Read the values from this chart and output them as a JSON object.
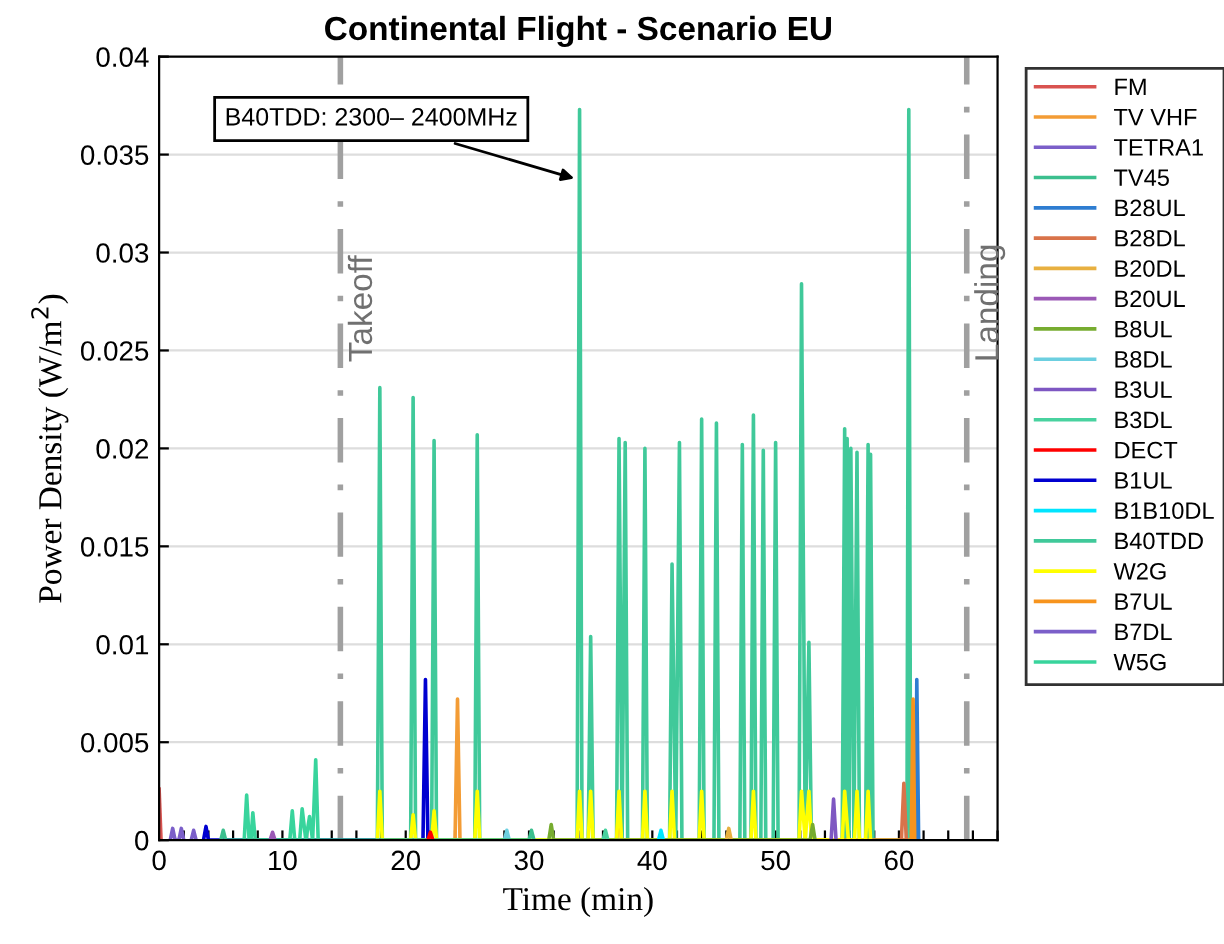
{
  "chart_data": {
    "type": "line",
    "title": "Continental Flight - Scenario EU",
    "xlabel": "Time (min)",
    "ylabel": "Power Density (W/m$^{2}$)",
    "xlim": [
      0,
      68
    ],
    "ylim": [
      0,
      0.04
    ],
    "xticks": [
      0,
      {
        "value": 2,
        "label": null
      },
      {
        "value": 4,
        "label": null
      },
      {
        "value": 6,
        "label": null
      },
      {
        "value": 8,
        "label": null
      },
      10,
      {
        "value": 12,
        "label": null
      },
      {
        "value": 14,
        "label": null
      },
      {
        "value": 16,
        "label": null
      },
      {
        "value": 18,
        "label": null
      },
      20,
      {
        "value": 22,
        "label": null
      },
      {
        "value": 24,
        "label": null
      },
      {
        "value": 26,
        "label": null
      },
      {
        "value": 28,
        "label": null
      },
      30,
      {
        "value": 32,
        "label": null
      },
      {
        "value": 34,
        "label": null
      },
      {
        "value": 36,
        "label": null
      },
      {
        "value": 38,
        "label": null
      },
      40,
      {
        "value": 42,
        "label": null
      },
      {
        "value": 44,
        "label": null
      },
      {
        "value": 46,
        "label": null
      },
      {
        "value": 48,
        "label": null
      },
      50,
      {
        "value": 52,
        "label": null
      },
      {
        "value": 54,
        "label": null
      },
      {
        "value": 56,
        "label": null
      },
      {
        "value": 58,
        "label": null
      },
      60,
      {
        "value": 62,
        "label": null
      },
      {
        "value": 64,
        "label": null
      },
      {
        "value": 66,
        "label": null
      },
      {
        "value": 68,
        "label": null
      }
    ],
    "yticks": [
      0,
      0.005,
      0.01,
      0.015,
      0.02,
      0.025,
      0.03,
      0.035,
      0.04
    ],
    "grid": "y",
    "legend": "right",
    "line_style": "solid",
    "ref_lines": [
      {
        "axis": "x",
        "value": 14.7,
        "label": "Takeoff",
        "color": "#a0a0a0",
        "line_style": "dashdot"
      },
      {
        "axis": "x",
        "value": 65.5,
        "label": "Landing",
        "color": "#a0a0a0",
        "line_style": "dashdot"
      }
    ],
    "annotations": [
      {
        "text": "B40TDD: 2300– 2400MHz",
        "x": 34.1,
        "y": 0.0337
      }
    ],
    "series": [
      {
        "name": "FM",
        "color": "#d95350",
        "x": [
          0,
          0.15
        ],
        "values": [
          0.0026,
          0.0001
        ]
      },
      {
        "name": "TV VHF",
        "color": "#f39c35",
        "x": [
          24.0,
          24.2,
          24.4
        ],
        "values": [
          0,
          0.0072,
          0
        ]
      },
      {
        "name": "TETRA1",
        "color": "#7b5fc9",
        "x": [
          0.9,
          1.1,
          1.3,
          1.6,
          1.8,
          2.0
        ],
        "values": [
          0,
          0.0006,
          0,
          0,
          0.0006,
          0
        ]
      },
      {
        "name": "TV45",
        "color": "#3cbf8e",
        "x": [
          5.0,
          5.2,
          5.4,
          30.0,
          30.2,
          30.4
        ],
        "values": [
          0,
          0.0005,
          0,
          0,
          0.0005,
          0
        ]
      },
      {
        "name": "B28UL",
        "color": "#2e7dd1",
        "x": [
          61.35,
          61.45,
          61.6
        ],
        "values": [
          0,
          0.0082,
          0
        ]
      },
      {
        "name": "B28DL",
        "color": "#d9734a",
        "x": [
          60.2,
          60.4,
          60.6
        ],
        "values": [
          0,
          0.0029,
          0
        ]
      },
      {
        "name": "B20DL",
        "color": "#e8b040",
        "x": [
          46.0,
          46.2,
          46.4
        ],
        "values": [
          0,
          0.0006,
          0
        ]
      },
      {
        "name": "B20UL",
        "color": "#9b59b6",
        "x": [
          9.0,
          9.2,
          9.4
        ],
        "values": [
          0,
          0.0004,
          0
        ]
      },
      {
        "name": "B8UL",
        "color": "#77ac30",
        "x": [
          31.6,
          31.8,
          32.0,
          52.8,
          53.0,
          53.2
        ],
        "values": [
          0,
          0.0008,
          0,
          0,
          0.0008,
          0
        ]
      },
      {
        "name": "B8DL",
        "color": "#6ccfe0",
        "x": [
          28.0,
          28.2,
          28.4
        ],
        "values": [
          0,
          0.0005,
          0
        ]
      },
      {
        "name": "B3UL",
        "color": "#7e57c2",
        "x": [
          54.5,
          54.7,
          54.9
        ],
        "values": [
          0,
          0.0021,
          0
        ]
      },
      {
        "name": "B3DL",
        "color": "#48d29f",
        "x": [
          36.0,
          36.2,
          36.4
        ],
        "values": [
          0,
          0.0005,
          0
        ]
      },
      {
        "name": "DECT",
        "color": "#ff0000",
        "x": [
          21.8,
          22.0,
          22.2
        ],
        "values": [
          0,
          0.0004,
          0
        ]
      },
      {
        "name": "B1UL",
        "color": "#0000d0",
        "x": [
          3.6,
          3.8,
          4.0,
          21.4,
          21.6,
          21.8
        ],
        "values": [
          0,
          0.0007,
          0,
          0,
          0.0082,
          0
        ]
      },
      {
        "name": "B1B10DL",
        "color": "#00e5ff",
        "x": [
          40.5,
          40.7,
          40.9
        ],
        "values": [
          0,
          0.0005,
          0
        ]
      },
      {
        "name": "B40TDD",
        "color": "#40c99a",
        "x": [
          17.7,
          17.9,
          18.1,
          20.4,
          20.6,
          20.8,
          22.1,
          22.3,
          22.5,
          25.6,
          25.8,
          26.0,
          33.9,
          34.1,
          34.3,
          34.8,
          35.0,
          35.2,
          37.1,
          37.3,
          37.55,
          37.8,
          38.0,
          39.2,
          39.4,
          39.6,
          41.4,
          41.6,
          41.9,
          42.2,
          42.4,
          43.8,
          44.0,
          44.2,
          45.0,
          45.2,
          45.4,
          47.1,
          47.3,
          47.5,
          48.0,
          48.2,
          48.4,
          48.8,
          49.0,
          49.2,
          49.8,
          50.0,
          50.2,
          51.9,
          52.1,
          52.4,
          52.7,
          52.9,
          55.4,
          55.6,
          55.7,
          55.8,
          55.95,
          56.1,
          56.35,
          56.6,
          56.8,
          57.3,
          57.5,
          57.6,
          57.7,
          57.9,
          60.65,
          60.8,
          60.95
        ],
        "values": [
          0,
          0.0231,
          0,
          0,
          0.0226,
          0,
          0,
          0.0204,
          0,
          0,
          0.0207,
          0,
          0,
          0.0373,
          0,
          0,
          0.0104,
          0,
          0,
          0.0205,
          0,
          0.0203,
          0,
          0,
          0.02,
          0,
          0,
          0.0141,
          0,
          0.0203,
          0,
          0,
          0.0215,
          0,
          0,
          0.0213,
          0,
          0,
          0.0202,
          0,
          0,
          0.0217,
          0,
          0,
          0.0199,
          0,
          0,
          0.0203,
          0,
          0,
          0.0284,
          0,
          0.0101,
          0,
          0,
          0.021,
          0,
          0.0205,
          0,
          0.02,
          0,
          0.0198,
          0,
          0,
          0.0202,
          0,
          0.0197,
          0,
          0,
          0.0373,
          0
        ]
      },
      {
        "name": "W2G",
        "color": "#ffff00",
        "x": [
          17.7,
          17.9,
          18.1,
          20.4,
          20.6,
          20.8,
          22.1,
          22.3,
          22.5,
          25.6,
          25.8,
          26.0,
          33.9,
          34.1,
          34.3,
          34.8,
          35.0,
          35.2,
          37.1,
          37.3,
          37.5,
          39.2,
          39.4,
          39.6,
          41.4,
          41.6,
          41.8,
          43.8,
          44.0,
          44.2,
          48.0,
          48.2,
          48.4,
          51.9,
          52.1,
          52.4,
          52.7,
          52.9,
          55.4,
          55.6,
          55.9,
          56.4,
          56.6,
          56.8,
          57.3,
          57.5,
          57.7
        ],
        "values": [
          0,
          0.0025,
          0,
          0,
          0.0013,
          0,
          0,
          0.0015,
          0,
          0,
          0.0025,
          0,
          0,
          0.0025,
          0,
          0,
          0.0025,
          0,
          0,
          0.0025,
          0,
          0,
          0.0025,
          0,
          0,
          0.0025,
          0,
          0,
          0.0025,
          0,
          0,
          0.0025,
          0,
          0,
          0.0025,
          0,
          0.0025,
          0,
          0,
          0.0025,
          0,
          0,
          0.0025,
          0,
          0,
          0.0025,
          0
        ]
      },
      {
        "name": "B7UL",
        "color": "#f7941d",
        "x": [
          37.1,
          37.3,
          37.5,
          61.0,
          61.15,
          61.28
        ],
        "values": [
          0,
          0.0018,
          0,
          0,
          0.0072,
          0
        ]
      },
      {
        "name": "B7DL",
        "color": "#7b5fc9",
        "x": [
          2.6,
          2.8,
          3.0
        ],
        "values": [
          0,
          0.0005,
          0
        ]
      },
      {
        "name": "W5G",
        "color": "#38d49c",
        "x": [
          6.9,
          7.1,
          7.3,
          7.45,
          7.6,
          7.8,
          10.6,
          10.8,
          11.0,
          11.4,
          11.6,
          11.9,
          12.2,
          12.45,
          12.7,
          12.9
        ],
        "values": [
          0,
          0.0023,
          0,
          0,
          0.0014,
          0,
          0,
          0.0015,
          0,
          0,
          0.0016,
          0,
          0.0012,
          0,
          0.0041,
          0
        ]
      }
    ]
  }
}
